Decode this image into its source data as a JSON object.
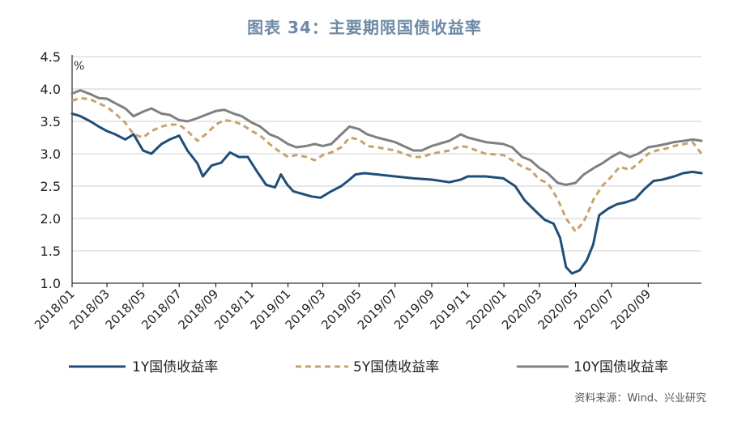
{
  "title": "图表 34：主要期限国债收益率",
  "source": "资料来源：Wind、兴业研究",
  "chart_data": {
    "type": "line",
    "unit": "%",
    "ylim": [
      1.0,
      4.5
    ],
    "yticks": [
      "1.0",
      "1.5",
      "2.0",
      "2.5",
      "3.0",
      "3.5",
      "4.0",
      "4.5"
    ],
    "xlim": [
      "2018-01-01",
      "2020-11-30"
    ],
    "xticks": [
      {
        "date": "2018-01-01",
        "label": "2018/01"
      },
      {
        "date": "2018-03-01",
        "label": "2018/03"
      },
      {
        "date": "2018-05-01",
        "label": "2018/05"
      },
      {
        "date": "2018-07-01",
        "label": "2018/07"
      },
      {
        "date": "2018-09-01",
        "label": "2018/09"
      },
      {
        "date": "2018-11-01",
        "label": "2018/11"
      },
      {
        "date": "2019-01-01",
        "label": "2019/01"
      },
      {
        "date": "2019-03-01",
        "label": "2019/03"
      },
      {
        "date": "2019-05-01",
        "label": "2019/05"
      },
      {
        "date": "2019-07-01",
        "label": "2019/07"
      },
      {
        "date": "2019-09-01",
        "label": "2019/09"
      },
      {
        "date": "2019-11-01",
        "label": "2019/11"
      },
      {
        "date": "2020-01-01",
        "label": "2020/01"
      },
      {
        "date": "2020-03-01",
        "label": "2020/03"
      },
      {
        "date": "2020-05-01",
        "label": "2020/05"
      },
      {
        "date": "2020-07-01",
        "label": "2020/07"
      },
      {
        "date": "2020-09-01",
        "label": "2020/09"
      }
    ],
    "grid": true,
    "legend_position": "bottom",
    "series": [
      {
        "name": "1Y国债收益率",
        "color": "#1f4e79",
        "dash": "solid",
        "points": [
          [
            "2018-01-01",
            3.62
          ],
          [
            "2018-01-15",
            3.58
          ],
          [
            "2018-02-01",
            3.5
          ],
          [
            "2018-02-15",
            3.42
          ],
          [
            "2018-03-01",
            3.35
          ],
          [
            "2018-03-15",
            3.3
          ],
          [
            "2018-04-01",
            3.22
          ],
          [
            "2018-04-15",
            3.3
          ],
          [
            "2018-05-01",
            3.05
          ],
          [
            "2018-05-15",
            3.0
          ],
          [
            "2018-06-01",
            3.15
          ],
          [
            "2018-06-15",
            3.22
          ],
          [
            "2018-07-01",
            3.28
          ],
          [
            "2018-07-15",
            3.05
          ],
          [
            "2018-08-01",
            2.85
          ],
          [
            "2018-08-10",
            2.65
          ],
          [
            "2018-08-25",
            2.82
          ],
          [
            "2018-09-10",
            2.86
          ],
          [
            "2018-09-25",
            3.02
          ],
          [
            "2018-10-10",
            2.95
          ],
          [
            "2018-10-25",
            2.95
          ],
          [
            "2018-11-10",
            2.72
          ],
          [
            "2018-11-25",
            2.52
          ],
          [
            "2018-12-10",
            2.48
          ],
          [
            "2018-12-20",
            2.68
          ],
          [
            "2018-12-31",
            2.52
          ],
          [
            "2019-01-10",
            2.42
          ],
          [
            "2019-01-25",
            2.38
          ],
          [
            "2019-02-10",
            2.34
          ],
          [
            "2019-02-25",
            2.32
          ],
          [
            "2019-03-15",
            2.42
          ],
          [
            "2019-04-01",
            2.5
          ],
          [
            "2019-04-15",
            2.6
          ],
          [
            "2019-04-25",
            2.68
          ],
          [
            "2019-05-10",
            2.7
          ],
          [
            "2019-06-01",
            2.68
          ],
          [
            "2019-07-01",
            2.65
          ],
          [
            "2019-08-01",
            2.62
          ],
          [
            "2019-09-01",
            2.6
          ],
          [
            "2019-10-01",
            2.56
          ],
          [
            "2019-10-20",
            2.6
          ],
          [
            "2019-11-01",
            2.65
          ],
          [
            "2019-12-01",
            2.65
          ],
          [
            "2019-12-31",
            2.62
          ],
          [
            "2020-01-20",
            2.5
          ],
          [
            "2020-02-05",
            2.28
          ],
          [
            "2020-02-25",
            2.1
          ],
          [
            "2020-03-10",
            1.98
          ],
          [
            "2020-03-25",
            1.92
          ],
          [
            "2020-04-05",
            1.7
          ],
          [
            "2020-04-15",
            1.25
          ],
          [
            "2020-04-25",
            1.15
          ],
          [
            "2020-05-08",
            1.2
          ],
          [
            "2020-05-20",
            1.35
          ],
          [
            "2020-05-31",
            1.6
          ],
          [
            "2020-06-10",
            2.05
          ],
          [
            "2020-06-25",
            2.15
          ],
          [
            "2020-07-10",
            2.22
          ],
          [
            "2020-07-25",
            2.25
          ],
          [
            "2020-08-10",
            2.3
          ],
          [
            "2020-08-25",
            2.45
          ],
          [
            "2020-09-10",
            2.58
          ],
          [
            "2020-09-25",
            2.6
          ],
          [
            "2020-10-15",
            2.65
          ],
          [
            "2020-10-30",
            2.7
          ],
          [
            "2020-11-15",
            2.72
          ],
          [
            "2020-11-30",
            2.7
          ]
        ]
      },
      {
        "name": "5Y国债收益率",
        "color": "#c8a26b",
        "dash": "dashed",
        "points": [
          [
            "2018-01-01",
            3.82
          ],
          [
            "2018-01-15",
            3.86
          ],
          [
            "2018-02-01",
            3.84
          ],
          [
            "2018-02-15",
            3.78
          ],
          [
            "2018-03-01",
            3.72
          ],
          [
            "2018-03-15",
            3.62
          ],
          [
            "2018-04-01",
            3.48
          ],
          [
            "2018-04-15",
            3.3
          ],
          [
            "2018-05-01",
            3.25
          ],
          [
            "2018-05-15",
            3.35
          ],
          [
            "2018-06-01",
            3.42
          ],
          [
            "2018-06-15",
            3.45
          ],
          [
            "2018-07-01",
            3.45
          ],
          [
            "2018-07-15",
            3.35
          ],
          [
            "2018-08-01",
            3.2
          ],
          [
            "2018-08-15",
            3.3
          ],
          [
            "2018-09-01",
            3.45
          ],
          [
            "2018-09-15",
            3.52
          ],
          [
            "2018-10-01",
            3.5
          ],
          [
            "2018-10-15",
            3.45
          ],
          [
            "2018-11-01",
            3.35
          ],
          [
            "2018-11-15",
            3.28
          ],
          [
            "2018-12-01",
            3.15
          ],
          [
            "2018-12-15",
            3.05
          ],
          [
            "2019-01-01",
            2.95
          ],
          [
            "2019-01-15",
            2.98
          ],
          [
            "2019-02-01",
            2.95
          ],
          [
            "2019-02-15",
            2.9
          ],
          [
            "2019-03-01",
            2.98
          ],
          [
            "2019-03-15",
            3.02
          ],
          [
            "2019-04-01",
            3.1
          ],
          [
            "2019-04-15",
            3.25
          ],
          [
            "2019-05-01",
            3.22
          ],
          [
            "2019-05-15",
            3.12
          ],
          [
            "2019-06-01",
            3.1
          ],
          [
            "2019-07-01",
            3.05
          ],
          [
            "2019-08-01",
            2.95
          ],
          [
            "2019-08-15",
            2.95
          ],
          [
            "2019-09-01",
            3.0
          ],
          [
            "2019-10-01",
            3.05
          ],
          [
            "2019-10-20",
            3.12
          ],
          [
            "2019-11-01",
            3.1
          ],
          [
            "2019-12-01",
            3.0
          ],
          [
            "2019-12-31",
            2.98
          ],
          [
            "2020-01-15",
            2.9
          ],
          [
            "2020-02-01",
            2.8
          ],
          [
            "2020-02-15",
            2.75
          ],
          [
            "2020-03-01",
            2.6
          ],
          [
            "2020-03-15",
            2.55
          ],
          [
            "2020-04-01",
            2.3
          ],
          [
            "2020-04-15",
            2.0
          ],
          [
            "2020-05-01",
            1.8
          ],
          [
            "2020-05-15",
            1.95
          ],
          [
            "2020-06-01",
            2.3
          ],
          [
            "2020-06-15",
            2.5
          ],
          [
            "2020-07-01",
            2.65
          ],
          [
            "2020-07-15",
            2.8
          ],
          [
            "2020-08-01",
            2.75
          ],
          [
            "2020-08-15",
            2.85
          ],
          [
            "2020-09-01",
            3.0
          ],
          [
            "2020-09-15",
            3.05
          ],
          [
            "2020-10-01",
            3.08
          ],
          [
            "2020-10-15",
            3.12
          ],
          [
            "2020-11-01",
            3.15
          ],
          [
            "2020-11-15",
            3.18
          ],
          [
            "2020-11-30",
            3.0
          ]
        ]
      },
      {
        "name": "10Y国债收益率",
        "color": "#808080",
        "dash": "solid",
        "points": [
          [
            "2018-01-01",
            3.93
          ],
          [
            "2018-01-15",
            3.98
          ],
          [
            "2018-02-01",
            3.92
          ],
          [
            "2018-02-15",
            3.86
          ],
          [
            "2018-03-01",
            3.85
          ],
          [
            "2018-03-15",
            3.78
          ],
          [
            "2018-04-01",
            3.7
          ],
          [
            "2018-04-15",
            3.58
          ],
          [
            "2018-05-01",
            3.65
          ],
          [
            "2018-05-15",
            3.7
          ],
          [
            "2018-06-01",
            3.62
          ],
          [
            "2018-06-15",
            3.6
          ],
          [
            "2018-07-01",
            3.52
          ],
          [
            "2018-07-15",
            3.5
          ],
          [
            "2018-08-01",
            3.55
          ],
          [
            "2018-08-15",
            3.6
          ],
          [
            "2018-09-01",
            3.66
          ],
          [
            "2018-09-15",
            3.68
          ],
          [
            "2018-10-01",
            3.62
          ],
          [
            "2018-10-15",
            3.58
          ],
          [
            "2018-11-01",
            3.48
          ],
          [
            "2018-11-15",
            3.42
          ],
          [
            "2018-12-01",
            3.3
          ],
          [
            "2018-12-15",
            3.25
          ],
          [
            "2019-01-01",
            3.15
          ],
          [
            "2019-01-15",
            3.1
          ],
          [
            "2019-02-01",
            3.12
          ],
          [
            "2019-02-15",
            3.15
          ],
          [
            "2019-03-01",
            3.12
          ],
          [
            "2019-03-15",
            3.15
          ],
          [
            "2019-04-01",
            3.3
          ],
          [
            "2019-04-15",
            3.42
          ],
          [
            "2019-05-01",
            3.38
          ],
          [
            "2019-05-15",
            3.3
          ],
          [
            "2019-06-01",
            3.25
          ],
          [
            "2019-07-01",
            3.18
          ],
          [
            "2019-08-01",
            3.05
          ],
          [
            "2019-08-15",
            3.05
          ],
          [
            "2019-09-01",
            3.12
          ],
          [
            "2019-10-01",
            3.2
          ],
          [
            "2019-10-20",
            3.3
          ],
          [
            "2019-11-01",
            3.25
          ],
          [
            "2019-12-01",
            3.18
          ],
          [
            "2019-12-31",
            3.15
          ],
          [
            "2020-01-15",
            3.1
          ],
          [
            "2020-02-01",
            2.95
          ],
          [
            "2020-02-15",
            2.9
          ],
          [
            "2020-03-01",
            2.78
          ],
          [
            "2020-03-15",
            2.7
          ],
          [
            "2020-04-01",
            2.55
          ],
          [
            "2020-04-15",
            2.52
          ],
          [
            "2020-05-01",
            2.55
          ],
          [
            "2020-05-15",
            2.68
          ],
          [
            "2020-06-01",
            2.78
          ],
          [
            "2020-06-15",
            2.85
          ],
          [
            "2020-07-01",
            2.95
          ],
          [
            "2020-07-15",
            3.02
          ],
          [
            "2020-08-01",
            2.95
          ],
          [
            "2020-08-15",
            3.0
          ],
          [
            "2020-09-01",
            3.1
          ],
          [
            "2020-09-15",
            3.12
          ],
          [
            "2020-10-01",
            3.15
          ],
          [
            "2020-10-15",
            3.18
          ],
          [
            "2020-11-01",
            3.2
          ],
          [
            "2020-11-15",
            3.22
          ],
          [
            "2020-11-30",
            3.2
          ]
        ]
      }
    ]
  }
}
